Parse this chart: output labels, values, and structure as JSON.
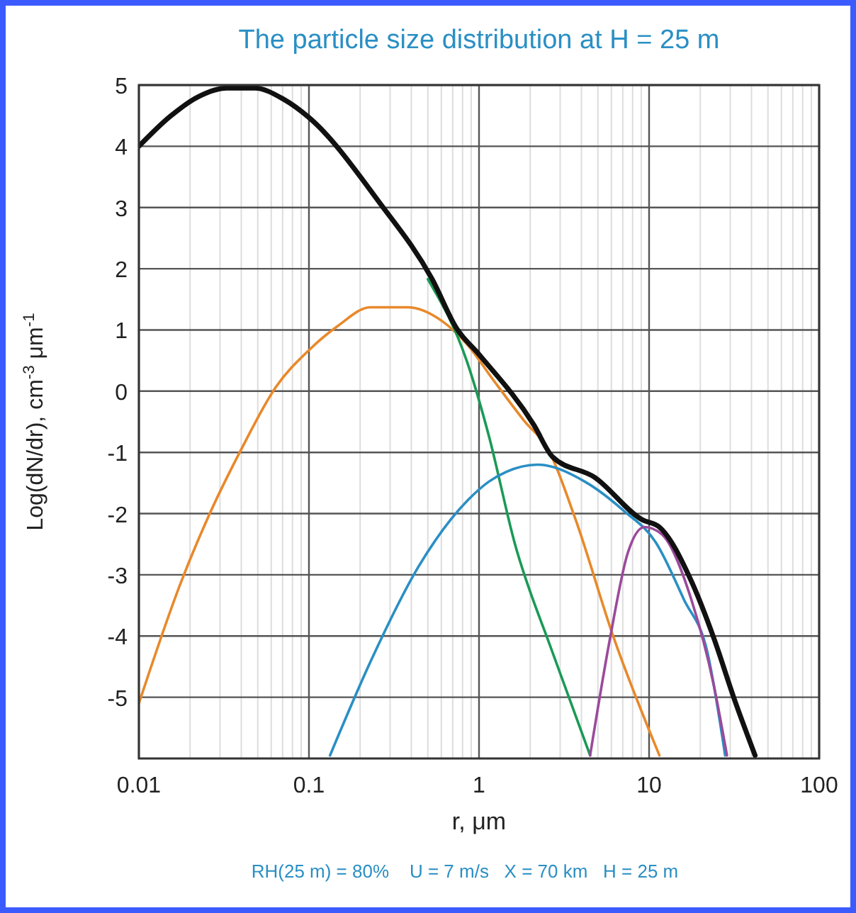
{
  "chart_data": {
    "type": "line",
    "title": "The particle size distribution at H = 25 m",
    "xlabel": "r, μm",
    "ylabel": "Log(dN/dr), cm$^{-3}$  μm$^{-1}$",
    "annotations": [
      "RH(25 m) = 80%    U = 7 m/s   X = 70 km   H = 25 m"
    ],
    "log": "x",
    "grid": true,
    "line_style": "solid",
    "marker": "none",
    "xlim": [
      0.01,
      100
    ],
    "xticks": [
      0.01,
      0.1,
      1,
      10,
      100
    ],
    "ylim": [
      -6,
      5
    ],
    "yticks": [
      -5,
      -4,
      -3,
      -2,
      -1,
      0,
      1,
      2,
      3,
      4,
      5
    ],
    "series": [
      {
        "color": "#e8892b",
        "x": [
          0.01,
          0.0178,
          0.026,
          0.04,
          0.064,
          0.1,
          0.147,
          0.23,
          0.38,
          0.61,
          0.86,
          1.2,
          1.85,
          2.55,
          3.7,
          6.2,
          11.5
        ],
        "values": [
          -5.1,
          -3.1,
          -2.01,
          -0.95,
          0.07,
          0.67,
          1.06,
          1.37,
          1.37,
          1.14,
          0.75,
          0.2,
          -0.49,
          -0.95,
          -2.1,
          -4.03,
          -5.95
        ]
      },
      {
        "color": "#1a9a55",
        "x": [
          0.5,
          0.86,
          1.14,
          1.62,
          2.7,
          4.5
        ],
        "values": [
          1.83,
          0.44,
          -0.72,
          -2.48,
          -4.26,
          -5.95
        ]
      },
      {
        "color": "#2a8fc4",
        "x": [
          0.133,
          0.23,
          0.44,
          0.86,
          1.14,
          1.44,
          2.2,
          4.2,
          7,
          11,
          16,
          22,
          28
        ],
        "values": [
          -5.95,
          -4.42,
          -2.87,
          -1.78,
          -1.48,
          -1.32,
          -1.2,
          -1.48,
          -1.94,
          -2.48,
          -3.4,
          -4.26,
          -5.95
        ]
      },
      {
        "color": "#9b4a9b",
        "x": [
          4.5,
          5.9,
          7.5,
          9.4,
          11.9,
          17.7,
          24,
          28.7
        ],
        "values": [
          -5.95,
          -4.03,
          -2.64,
          -2.22,
          -2.34,
          -3.4,
          -4.8,
          -5.95
        ]
      },
      {
        "color": "#111111",
        "x": [
          0.01,
          0.0153,
          0.0224,
          0.0329,
          0.048,
          0.0708,
          0.1,
          0.26,
          0.53,
          0.74,
          1,
          2.1,
          2.7,
          4.8,
          9.1,
          11.5,
          17.7,
          24,
          31.6,
          42
        ],
        "values": [
          4.0,
          4.49,
          4.81,
          4.95,
          4.95,
          4.77,
          4.47,
          3.08,
          1.83,
          1.02,
          0.6,
          -0.55,
          -1.07,
          -1.41,
          -2.1,
          -2.22,
          -3.1,
          -4.03,
          -5.02,
          -5.95
        ]
      }
    ]
  }
}
